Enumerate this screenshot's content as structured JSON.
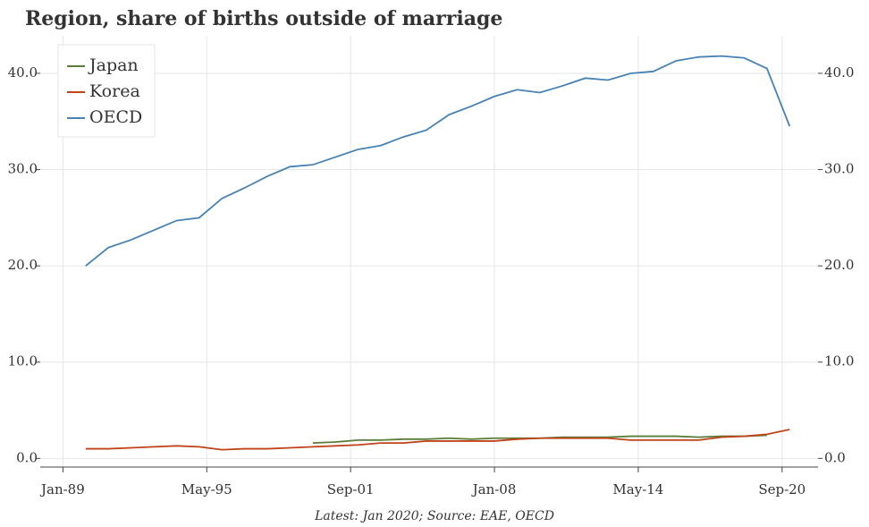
{
  "chart_data": {
    "type": "line",
    "title": "Region, share of births outside of marriage",
    "footnote": "Latest: Jan 2020; Source: EAE, OECD",
    "x": [
      "1990-01",
      "1991-01",
      "1992-01",
      "1993-01",
      "1994-01",
      "1995-01",
      "1996-01",
      "1997-01",
      "1998-01",
      "1999-01",
      "2000-01",
      "2001-01",
      "2002-01",
      "2003-01",
      "2004-01",
      "2005-01",
      "2006-01",
      "2007-01",
      "2008-01",
      "2009-01",
      "2010-01",
      "2011-01",
      "2012-01",
      "2013-01",
      "2014-01",
      "2015-01",
      "2016-01",
      "2017-01",
      "2018-01",
      "2019-01",
      "2020-01",
      "2021-01"
    ],
    "series": [
      {
        "name": "Japan",
        "color": "#5a7d3a",
        "values": [
          null,
          null,
          null,
          null,
          null,
          null,
          null,
          null,
          null,
          null,
          1.6,
          1.7,
          1.9,
          1.9,
          2.0,
          2.0,
          2.1,
          2.0,
          2.1,
          2.1,
          2.1,
          2.2,
          2.2,
          2.2,
          2.3,
          2.3,
          2.3,
          2.2,
          2.3,
          2.3,
          2.4,
          null
        ]
      },
      {
        "name": "Korea",
        "color": "#c0431a",
        "values": [
          1.0,
          1.0,
          1.1,
          1.2,
          1.3,
          1.2,
          0.9,
          1.0,
          1.0,
          1.1,
          1.2,
          1.3,
          1.4,
          1.6,
          1.6,
          1.8,
          1.8,
          1.8,
          1.8,
          2.0,
          2.1,
          2.1,
          2.1,
          2.1,
          1.9,
          1.9,
          1.9,
          1.9,
          2.2,
          2.3,
          2.5,
          3.0
        ]
      },
      {
        "name": "OECD",
        "color": "#4682b4",
        "values": [
          20.0,
          21.9,
          22.7,
          23.7,
          24.7,
          25.0,
          27.0,
          28.1,
          29.3,
          30.3,
          30.5,
          31.3,
          32.1,
          32.5,
          33.4,
          34.1,
          35.7,
          36.6,
          37.6,
          38.3,
          38.0,
          38.7,
          39.5,
          39.3,
          40.0,
          40.2,
          41.3,
          41.7,
          41.8,
          41.6,
          40.5,
          34.5
        ]
      }
    ],
    "xlim": [
      "1988-01",
      "2022-04"
    ],
    "xticks": [
      {
        "value": "1989-01",
        "label": "Jan-89"
      },
      {
        "value": "1995-05",
        "label": "May-95"
      },
      {
        "value": "2001-09",
        "label": "Sep-01"
      },
      {
        "value": "2008-01",
        "label": "Jan-08"
      },
      {
        "value": "2014-05",
        "label": "May-14"
      },
      {
        "value": "2020-09",
        "label": "Sep-20"
      }
    ],
    "ylim": [
      -0.9,
      43.9
    ],
    "yticks": [
      {
        "value": 0,
        "label": "0.0"
      },
      {
        "value": 10,
        "label": "10.0"
      },
      {
        "value": 20,
        "label": "20.0"
      },
      {
        "value": 30,
        "label": "30.0"
      },
      {
        "value": 40,
        "label": "40.0"
      }
    ],
    "grid": true,
    "legend": "upper-left"
  }
}
